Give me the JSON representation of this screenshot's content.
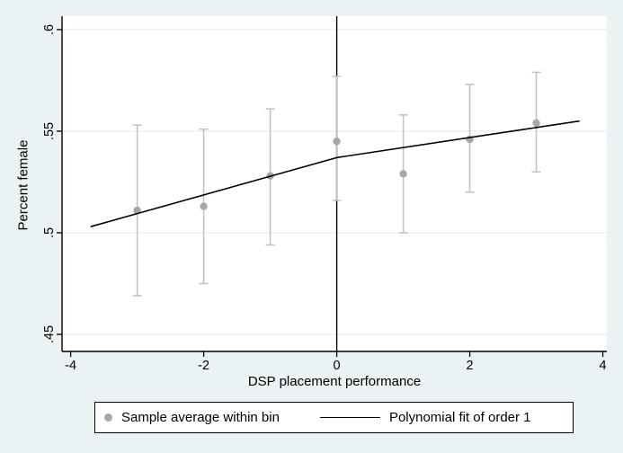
{
  "figure": {
    "background_color": "#eaf2f3",
    "plot_background": "#ffffff",
    "gridline_color": "#e3edf0",
    "axis_color": "#000000"
  },
  "chart_data": {
    "type": "scatter",
    "title": "",
    "xlabel": "DSP placement performance",
    "ylabel": "Percent female",
    "xlim": [
      -4.13,
      4.06
    ],
    "ylim": [
      0.4416,
      0.6066
    ],
    "x_ticks": [
      -4,
      -2,
      0,
      2,
      4
    ],
    "x_tick_labels": [
      "-4",
      "-2",
      "0",
      "2",
      "4"
    ],
    "y_ticks": [
      0.45,
      0.5,
      0.55,
      0.6
    ],
    "y_tick_labels": [
      ".45",
      ".5",
      ".55",
      ".6"
    ],
    "grid": "horizontal-only",
    "cutoff_line_x": 0,
    "legend_position": "bottom",
    "series": [
      {
        "name": "Sample average within bin",
        "type": "scatter_with_ci",
        "marker_color": "#a4a8aa",
        "ci_color": "#bdc2c4",
        "x": [
          -3,
          -2,
          -1,
          0,
          1,
          2,
          3
        ],
        "y": [
          0.511,
          0.513,
          0.528,
          0.545,
          0.529,
          0.546,
          0.554
        ],
        "ci_low": [
          0.469,
          0.475,
          0.494,
          0.516,
          0.5,
          0.52,
          0.53
        ],
        "ci_high": [
          0.553,
          0.551,
          0.561,
          0.577,
          0.558,
          0.573,
          0.579
        ]
      },
      {
        "name": "Polynomial fit of order 1",
        "type": "line",
        "color": "#000000",
        "segments": [
          {
            "x": [
              -3.7,
              0.0
            ],
            "y": [
              0.503,
              0.537
            ]
          },
          {
            "x": [
              0.0,
              3.65
            ],
            "y": [
              0.537,
              0.555
            ]
          }
        ]
      }
    ]
  }
}
